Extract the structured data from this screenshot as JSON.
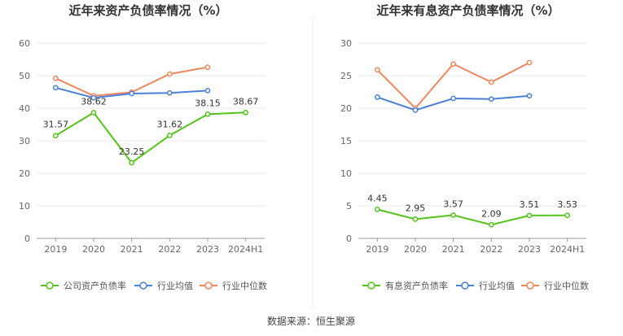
{
  "source_text": "数据来源：恒生聚源",
  "chart_data": [
    {
      "type": "line",
      "title": "近年来资产负债率情况（%）",
      "categories": [
        "2019",
        "2020",
        "2021",
        "2022",
        "2023",
        "2024H1"
      ],
      "ylim": [
        0,
        60
      ],
      "yticks": [
        0,
        10,
        20,
        30,
        40,
        50,
        60
      ],
      "grid": true,
      "legend_position": "bottom",
      "series": [
        {
          "name": "公司资产负债率",
          "color": "#52c41a",
          "values": [
            31.57,
            38.62,
            23.25,
            31.62,
            38.15,
            38.67
          ],
          "labels": [
            "31.57",
            "38.62",
            "23.25",
            "31.62",
            "38.15",
            "38.67"
          ]
        },
        {
          "name": "行业均值",
          "color": "#4a7fdc",
          "values": [
            46.3,
            43.2,
            44.5,
            44.7,
            45.4,
            null
          ]
        },
        {
          "name": "行业中位数",
          "color": "#f0875a",
          "values": [
            49.2,
            43.8,
            44.9,
            50.5,
            52.6,
            null
          ]
        }
      ]
    },
    {
      "type": "line",
      "title": "近年来有息资产负债率情况（%）",
      "categories": [
        "2019",
        "2020",
        "2021",
        "2022",
        "2023",
        "2024H1"
      ],
      "ylim": [
        0,
        30
      ],
      "yticks": [
        0,
        5,
        10,
        15,
        20,
        25,
        30
      ],
      "grid": true,
      "legend_position": "bottom",
      "series": [
        {
          "name": "有息资产负债率",
          "color": "#52c41a",
          "values": [
            4.45,
            2.95,
            3.57,
            2.09,
            3.51,
            3.53
          ],
          "labels": [
            "4.45",
            "2.95",
            "3.57",
            "2.09",
            "3.51",
            "3.53"
          ]
        },
        {
          "name": "行业均值",
          "color": "#4a7fdc",
          "values": [
            21.7,
            19.7,
            21.5,
            21.4,
            21.9,
            null
          ]
        },
        {
          "name": "行业中位数",
          "color": "#f0875a",
          "values": [
            25.9,
            20.0,
            26.8,
            24.0,
            27.0,
            null
          ]
        }
      ]
    }
  ]
}
